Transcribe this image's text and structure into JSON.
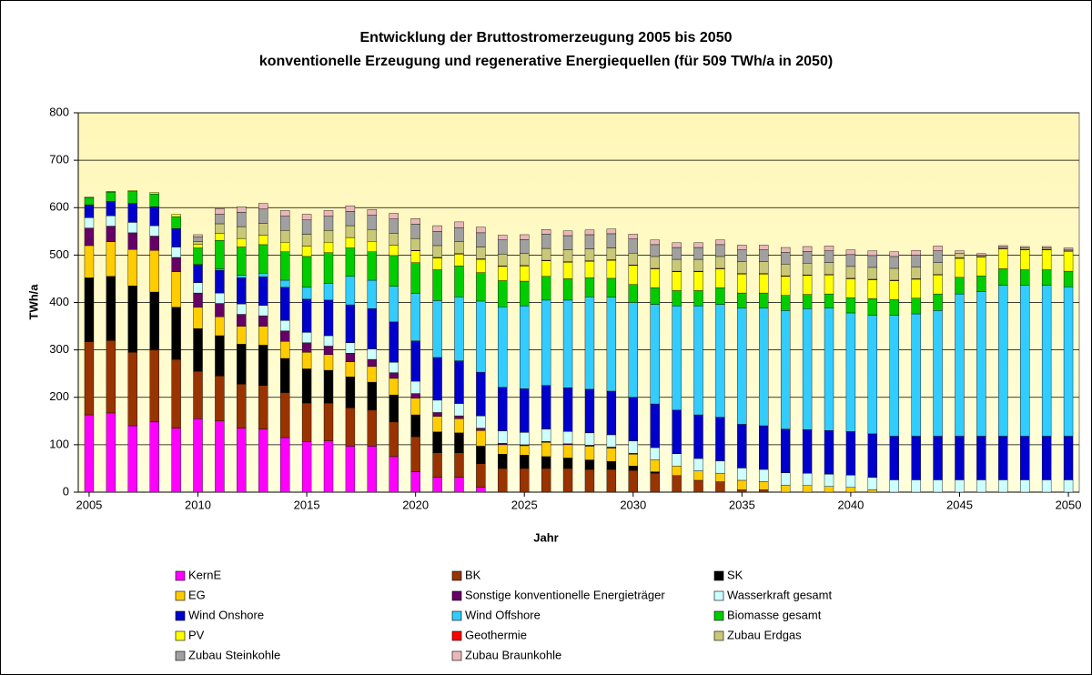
{
  "chart_data": {
    "type": "stacked_bar",
    "title": "Entwicklung der Bruttostromerzeugung 2005 bis 2050",
    "subtitle": "konventionelle Erzeugung und regenerative Energiequellen (für 509 TWh/a in 2050)",
    "x_label": "Jahr",
    "y_label": "TWh/a",
    "ylim": [
      0,
      800
    ],
    "yticks": [
      0,
      100,
      200,
      300,
      400,
      500,
      600,
      700,
      800
    ],
    "grid": true,
    "categories": [
      "2005",
      null,
      null,
      null,
      null,
      "2010",
      null,
      null,
      null,
      null,
      "2015",
      null,
      null,
      null,
      null,
      "2020",
      null,
      null,
      null,
      null,
      "2025",
      null,
      null,
      null,
      null,
      "2030",
      null,
      null,
      null,
      null,
      "2035",
      null,
      null,
      null,
      null,
      "2040",
      null,
      null,
      null,
      null,
      "2045",
      null,
      null,
      null,
      null,
      "2050"
    ],
    "series": [
      {
        "name": "KernE",
        "color": "#ff00ff",
        "values": [
          163,
          167,
          140,
          148,
          135,
          155,
          150,
          135,
          133,
          115,
          107,
          108,
          97,
          97,
          75,
          43,
          31,
          31,
          10,
          0,
          0,
          0,
          0,
          0,
          0,
          0,
          0,
          0,
          0,
          0,
          0,
          0,
          0,
          0,
          0,
          0,
          0,
          0,
          0,
          0,
          0,
          0,
          0,
          0,
          0,
          0
        ]
      },
      {
        "name": "BK",
        "color": "#993300",
        "values": [
          154,
          153,
          155,
          152,
          145,
          100,
          95,
          93,
          92,
          95,
          81,
          80,
          81,
          76,
          73,
          74,
          52,
          52,
          50,
          50,
          50,
          50,
          50,
          48,
          48,
          46,
          40,
          35,
          25,
          22,
          5,
          5,
          0,
          0,
          0,
          0,
          0,
          0,
          0,
          0,
          0,
          0,
          0,
          0,
          0,
          0
        ]
      },
      {
        "name": "SK",
        "color": "#000000",
        "values": [
          135,
          135,
          140,
          122,
          110,
          90,
          85,
          84,
          85,
          72,
          72,
          69,
          65,
          59,
          57,
          46,
          44,
          42,
          37,
          30,
          28,
          25,
          22,
          20,
          17,
          9,
          3,
          0,
          0,
          0,
          0,
          0,
          0,
          0,
          0,
          0,
          0,
          0,
          0,
          0,
          0,
          0,
          0,
          0,
          0,
          0
        ]
      },
      {
        "name": "EG",
        "color": "#ffcc00",
        "values": [
          68,
          73,
          77,
          88,
          75,
          45,
          40,
          38,
          40,
          36,
          35,
          33,
          32,
          33,
          35,
          35,
          33,
          30,
          33,
          20,
          20,
          30,
          28,
          29,
          28,
          25,
          25,
          20,
          20,
          18,
          20,
          17,
          15,
          14,
          12,
          10,
          5,
          0,
          0,
          0,
          0,
          0,
          0,
          0,
          0,
          0
        ]
      },
      {
        "name": "Sonstige konventionelle Energieträger",
        "color": "#660066",
        "values": [
          37,
          33,
          35,
          30,
          30,
          30,
          28,
          25,
          22,
          22,
          20,
          18,
          18,
          15,
          12,
          10,
          8,
          6,
          5,
          3,
          2,
          2,
          2,
          2,
          2,
          2,
          0,
          0,
          0,
          0,
          0,
          0,
          0,
          0,
          0,
          0,
          0,
          0,
          0,
          0,
          0,
          0,
          0,
          0,
          0,
          0
        ]
      },
      {
        "name": "Wasserkraft gesamt",
        "color": "#ccffff",
        "values": [
          22,
          22,
          22,
          22,
          22,
          22,
          22,
          22,
          22,
          22,
          22,
          22,
          22,
          22,
          22,
          26,
          26,
          26,
          26,
          26,
          26,
          26,
          26,
          26,
          26,
          26,
          26,
          26,
          26,
          26,
          26,
          26,
          26,
          26,
          26,
          26,
          26,
          26,
          26,
          26,
          26,
          26,
          26,
          26,
          26,
          26
        ]
      },
      {
        "name": "Wind Onshore",
        "color": "#0000cc",
        "values": [
          27,
          30,
          40,
          40,
          39,
          38,
          48,
          55,
          60,
          70,
          70,
          75,
          80,
          85,
          85,
          85,
          90,
          90,
          92,
          92,
          92,
          92,
          92,
          92,
          92,
          92,
          92,
          92,
          92,
          92,
          92,
          92,
          92,
          92,
          92,
          92,
          92,
          92,
          92,
          92,
          92,
          92,
          92,
          92,
          92,
          92
        ]
      },
      {
        "name": "Wind Offshore",
        "color": "#33ccff",
        "values": [
          0,
          0,
          0,
          0,
          0,
          0,
          3,
          5,
          8,
          15,
          25,
          35,
          60,
          60,
          75,
          100,
          120,
          135,
          150,
          170,
          175,
          180,
          185,
          195,
          198,
          200,
          210,
          220,
          230,
          238,
          245,
          248,
          250,
          255,
          258,
          250,
          250,
          255,
          258,
          265,
          300,
          305,
          318,
          318,
          318,
          315
        ]
      },
      {
        "name": "Biomasse gesamt",
        "color": "#00cc00",
        "values": [
          15,
          20,
          25,
          27,
          25,
          35,
          60,
          60,
          60,
          60,
          65,
          65,
          60,
          60,
          65,
          65,
          65,
          65,
          60,
          55,
          52,
          50,
          45,
          40,
          40,
          38,
          35,
          32,
          32,
          35,
          32,
          32,
          32,
          30,
          30,
          32,
          35,
          33,
          33,
          35,
          35,
          33,
          35,
          33,
          33,
          33
        ]
      },
      {
        "name": "PV",
        "color": "#ffff00",
        "values": [
          1,
          1,
          2,
          3,
          5,
          8,
          15,
          18,
          20,
          20,
          22,
          22,
          22,
          22,
          22,
          25,
          25,
          25,
          28,
          30,
          32,
          33,
          35,
          35,
          38,
          40,
          40,
          40,
          40,
          40,
          40,
          40,
          40,
          40,
          40,
          40,
          40,
          40,
          40,
          40,
          40,
          40,
          42,
          42,
          42,
          42
        ]
      },
      {
        "name": "Geothermie",
        "color": "#ff0000",
        "values": [
          0,
          0,
          0,
          0,
          0,
          0,
          0,
          0,
          0,
          0,
          0,
          0,
          0,
          0,
          0,
          1,
          1,
          1,
          1,
          1,
          1,
          1,
          1,
          1,
          1,
          1,
          1,
          1,
          1,
          1,
          1,
          1,
          1,
          1,
          1,
          1,
          1,
          1,
          1,
          1,
          1,
          1,
          1,
          1,
          1,
          1
        ]
      },
      {
        "name": "Zubau Erdgas",
        "color": "#c8c878",
        "values": [
          0,
          0,
          0,
          0,
          0,
          5,
          20,
          25,
          25,
          25,
          25,
          25,
          25,
          25,
          25,
          25,
          25,
          25,
          25,
          25,
          25,
          25,
          25,
          25,
          25,
          25,
          25,
          25,
          25,
          25,
          25,
          25,
          25,
          25,
          25,
          25,
          25,
          25,
          25,
          25,
          10,
          3,
          3,
          3,
          3,
          3
        ]
      },
      {
        "name": "Zubau Steinkohle",
        "color": "#a0a0a0",
        "values": [
          0,
          0,
          0,
          0,
          0,
          10,
          20,
          30,
          30,
          30,
          30,
          30,
          30,
          30,
          30,
          30,
          30,
          30,
          30,
          30,
          30,
          30,
          30,
          30,
          30,
          30,
          25,
          25,
          25,
          25,
          25,
          25,
          25,
          25,
          25,
          25,
          25,
          25,
          25,
          25,
          0,
          0,
          0,
          0,
          0,
          0
        ]
      },
      {
        "name": "Zubau Braunkohle",
        "color": "#e8b8b8",
        "values": [
          0,
          0,
          0,
          0,
          0,
          5,
          12,
          12,
          12,
          12,
          12,
          12,
          12,
          12,
          12,
          12,
          12,
          12,
          12,
          10,
          10,
          10,
          10,
          10,
          10,
          10,
          10,
          10,
          10,
          10,
          10,
          10,
          10,
          10,
          10,
          10,
          10,
          10,
          10,
          10,
          5,
          3,
          3,
          3,
          3,
          3
        ]
      }
    ]
  }
}
